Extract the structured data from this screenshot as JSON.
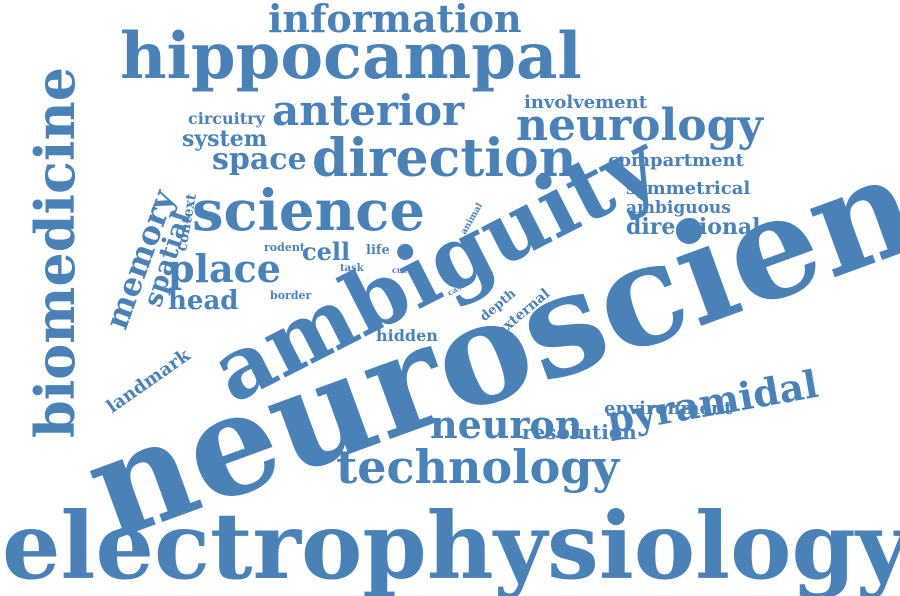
{
  "color": "#4a82b8",
  "words": {
    "neuroscience": "neuroscience",
    "electrophysiology": "electrophysiology",
    "ambiguity": "ambiguity",
    "hippocampal": "hippocampal",
    "science": "science",
    "direction": "direction",
    "technology": "technology",
    "biomedicine": "biomedicine",
    "neurology": "neurology",
    "information": "information",
    "anterior": "anterior",
    "pyramidal": "pyramidal",
    "neuron": "neuron",
    "place": "place",
    "space": "space",
    "memory": "memory",
    "head": "head",
    "spatial": "spatial",
    "directional": "directional",
    "system": "system",
    "cell": "cell",
    "resolution": "resolution",
    "environment": "environment",
    "compartment": "compartment",
    "involvement": "involvement",
    "symmetrical": "symmetrical",
    "ambiguous": "ambiguous",
    "circuitry": "circuitry",
    "landmark": "landmark",
    "hidden": "hidden",
    "context": "context",
    "external": "external",
    "depth": "depth",
    "rodent": "rodent",
    "border": "border",
    "life": "life",
    "task": "task",
    "animal": "animal",
    "case": "case",
    "cue": "cue"
  }
}
